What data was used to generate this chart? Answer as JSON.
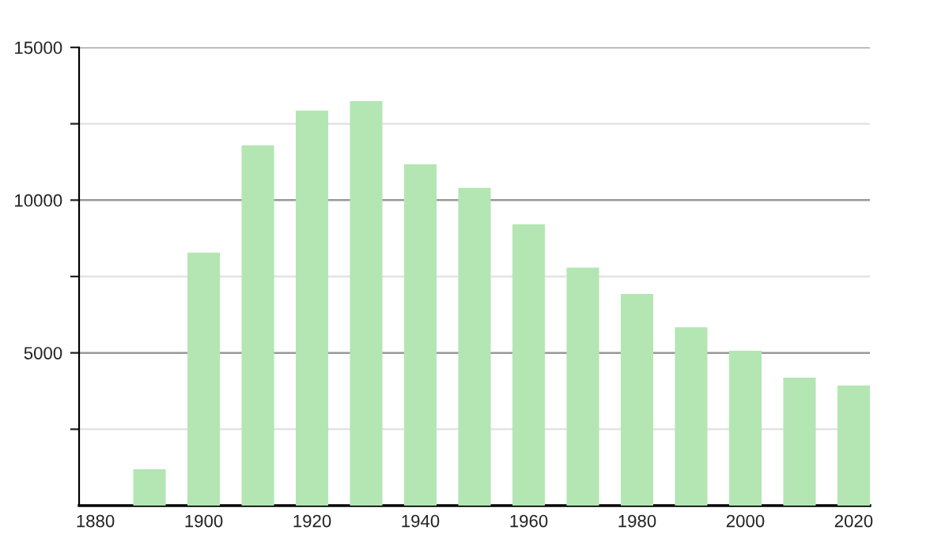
{
  "chart_data": {
    "type": "bar",
    "x": [
      1890,
      1900,
      1910,
      1920,
      1930,
      1940,
      1950,
      1960,
      1970,
      1980,
      1990,
      2000,
      2010,
      2020
    ],
    "values": [
      1190,
      8280,
      11790,
      12930,
      13240,
      11170,
      10400,
      9210,
      7790,
      6930,
      5840,
      5070,
      4190,
      3930
    ],
    "color": "#b3e6b3",
    "xlim": [
      1877,
      2023
    ],
    "xticks": [
      1880,
      1900,
      1920,
      1940,
      1960,
      1980,
      2000,
      2020
    ],
    "ylim": [
      0,
      15000
    ],
    "yticks": [
      {
        "value": 2500,
        "label": null
      },
      5000,
      {
        "value": 7500,
        "label": null
      },
      10000,
      {
        "value": 12500,
        "label": null
      },
      15000
    ],
    "grid": "y",
    "legend": false
  }
}
